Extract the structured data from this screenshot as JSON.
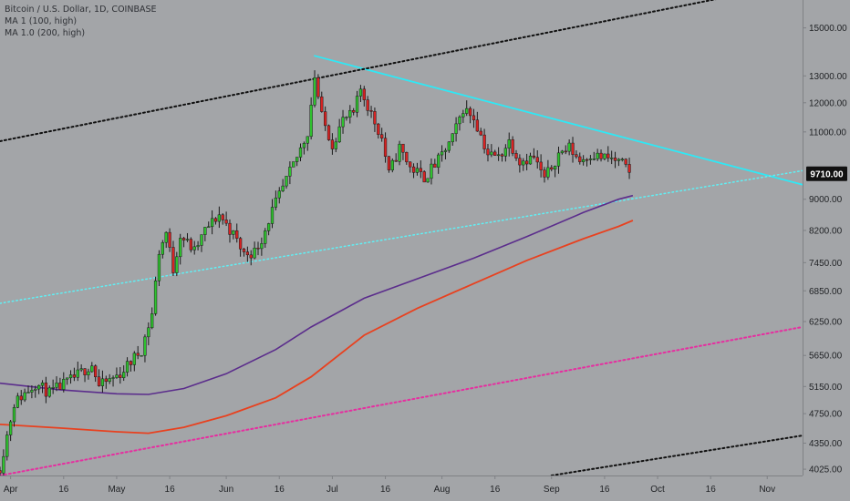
{
  "header": {
    "title": "Bitcoin / U.S. Dollar, 1D, COINBASE",
    "indicators": [
      "MA 1 (100, high)",
      "MA 1.0 (200, high)"
    ]
  },
  "colors": {
    "background": "#a3a5a8",
    "up_candle": "#2ec22e",
    "down_candle": "#d82222",
    "ma100": "#5b2d8c",
    "ma200": "#e8411f",
    "resistance_line": "#2fe8f5",
    "support_line": "#5ff0f5",
    "channel_black": "#111111",
    "channel_magenta": "#e62ea0",
    "price_label_bg": "#111111",
    "price_label_text": "#ffffff",
    "axis_text": "#1f2124"
  },
  "chart_data": {
    "type": "candlestick",
    "title": "Bitcoin / U.S. Dollar, 1D, COINBASE",
    "y_scale": "log",
    "ylim": [
      3950,
      16300
    ],
    "xlim": [
      "2019-03-29",
      "2019-11-11"
    ],
    "yticks": [
      "4025.00",
      "4350.00",
      "4750.00",
      "5150.00",
      "5650.00",
      "6250.00",
      "6850.00",
      "7450.00",
      "8200.00",
      "9000.00",
      "9710.00",
      "11000.00",
      "12000.00",
      "13000.00",
      "15000.00"
    ],
    "xticks": [
      {
        "date": "2019-04-01",
        "label": "Apr"
      },
      {
        "date": "2019-04-16",
        "label": "16"
      },
      {
        "date": "2019-05-01",
        "label": "May"
      },
      {
        "date": "2019-05-16",
        "label": "16"
      },
      {
        "date": "2019-06-01",
        "label": "Jun"
      },
      {
        "date": "2019-06-16",
        "label": "16"
      },
      {
        "date": "2019-07-01",
        "label": "Jul"
      },
      {
        "date": "2019-07-16",
        "label": "16"
      },
      {
        "date": "2019-08-01",
        "label": "Aug"
      },
      {
        "date": "2019-08-16",
        "label": "16"
      },
      {
        "date": "2019-09-01",
        "label": "Sep"
      },
      {
        "date": "2019-09-16",
        "label": "16"
      },
      {
        "date": "2019-10-01",
        "label": "Oct"
      },
      {
        "date": "2019-10-16",
        "label": "16"
      },
      {
        "date": "2019-11-01",
        "label": "Nov"
      }
    ],
    "last_price": "9710.00",
    "close_path": [
      [
        "2019-03-29",
        4050
      ],
      [
        "2019-04-02",
        4900
      ],
      [
        "2019-04-08",
        5200
      ],
      [
        "2019-04-12",
        5050
      ],
      [
        "2019-04-18",
        5250
      ],
      [
        "2019-04-24",
        5500
      ],
      [
        "2019-04-26",
        5150
      ],
      [
        "2019-05-02",
        5350
      ],
      [
        "2019-05-08",
        5750
      ],
      [
        "2019-05-11",
        6400
      ],
      [
        "2019-05-13",
        7700
      ],
      [
        "2019-05-15",
        8150
      ],
      [
        "2019-05-17",
        7300
      ],
      [
        "2019-05-19",
        8100
      ],
      [
        "2019-05-23",
        7700
      ],
      [
        "2019-05-26",
        8200
      ],
      [
        "2019-05-30",
        8600
      ],
      [
        "2019-06-03",
        8100
      ],
      [
        "2019-06-06",
        7650
      ],
      [
        "2019-06-09",
        7700
      ],
      [
        "2019-06-11",
        8000
      ],
      [
        "2019-06-14",
        8700
      ],
      [
        "2019-06-17",
        9300
      ],
      [
        "2019-06-21",
        10200
      ],
      [
        "2019-06-24",
        11000
      ],
      [
        "2019-06-26",
        13000
      ],
      [
        "2019-06-28",
        11500
      ],
      [
        "2019-07-01",
        10600
      ],
      [
        "2019-07-04",
        11400
      ],
      [
        "2019-07-07",
        11600
      ],
      [
        "2019-07-09",
        12500
      ],
      [
        "2019-07-12",
        11600
      ],
      [
        "2019-07-15",
        10800
      ],
      [
        "2019-07-17",
        9700
      ],
      [
        "2019-07-20",
        10500
      ],
      [
        "2019-07-23",
        9900
      ],
      [
        "2019-07-27",
        9600
      ],
      [
        "2019-07-31",
        10100
      ],
      [
        "2019-08-04",
        10800
      ],
      [
        "2019-08-07",
        11800
      ],
      [
        "2019-08-10",
        11500
      ],
      [
        "2019-08-14",
        10300
      ],
      [
        "2019-08-17",
        10200
      ],
      [
        "2019-08-20",
        10700
      ],
      [
        "2019-08-23",
        10100
      ],
      [
        "2019-08-27",
        10200
      ],
      [
        "2019-08-30",
        9550
      ],
      [
        "2019-09-03",
        10300
      ],
      [
        "2019-09-06",
        10500
      ],
      [
        "2019-09-09",
        10100
      ],
      [
        "2019-09-12",
        10300
      ],
      [
        "2019-09-15",
        10200
      ],
      [
        "2019-09-18",
        10150
      ],
      [
        "2019-09-21",
        10000
      ],
      [
        "2019-09-23",
        9710
      ]
    ],
    "ma100": [
      [
        "2019-03-29",
        5200
      ],
      [
        "2019-04-15",
        5100
      ],
      [
        "2019-05-01",
        5040
      ],
      [
        "2019-05-10",
        5030
      ],
      [
        "2019-05-20",
        5120
      ],
      [
        "2019-06-01",
        5350
      ],
      [
        "2019-06-15",
        5750
      ],
      [
        "2019-06-25",
        6150
      ],
      [
        "2019-07-10",
        6700
      ],
      [
        "2019-07-25",
        7100
      ],
      [
        "2019-08-10",
        7550
      ],
      [
        "2019-08-25",
        8050
      ],
      [
        "2019-09-10",
        8650
      ],
      [
        "2019-09-20",
        9000
      ],
      [
        "2019-09-24",
        9100
      ]
    ],
    "ma200": [
      [
        "2019-03-29",
        4600
      ],
      [
        "2019-04-15",
        4550
      ],
      [
        "2019-05-01",
        4500
      ],
      [
        "2019-05-10",
        4480
      ],
      [
        "2019-05-20",
        4560
      ],
      [
        "2019-06-01",
        4720
      ],
      [
        "2019-06-15",
        4980
      ],
      [
        "2019-06-25",
        5300
      ],
      [
        "2019-07-10",
        6000
      ],
      [
        "2019-07-25",
        6500
      ],
      [
        "2019-08-10",
        7000
      ],
      [
        "2019-08-25",
        7500
      ],
      [
        "2019-09-10",
        8000
      ],
      [
        "2019-09-20",
        8300
      ],
      [
        "2019-09-24",
        8450
      ]
    ],
    "trendlines": [
      {
        "name": "resistance",
        "style": "solid",
        "points": [
          [
            "2019-06-26",
            13800
          ],
          [
            "2019-11-11",
            9400
          ]
        ]
      },
      {
        "name": "support",
        "style": "dotted",
        "points": [
          [
            "2019-03-29",
            6600
          ],
          [
            "2019-11-11",
            9800
          ]
        ]
      },
      {
        "name": "channel-upper",
        "style": "dotted",
        "points": [
          [
            "2019-03-29",
            10700
          ],
          [
            "2019-11-11",
            17200
          ]
        ]
      },
      {
        "name": "channel-lower",
        "style": "dotted",
        "points": [
          [
            "2019-09-01",
            3950
          ],
          [
            "2019-11-11",
            4450
          ]
        ]
      },
      {
        "name": "channel-magenta",
        "style": "dotted",
        "points": [
          [
            "2019-03-29",
            3950
          ],
          [
            "2019-11-11",
            6150
          ]
        ]
      }
    ]
  }
}
